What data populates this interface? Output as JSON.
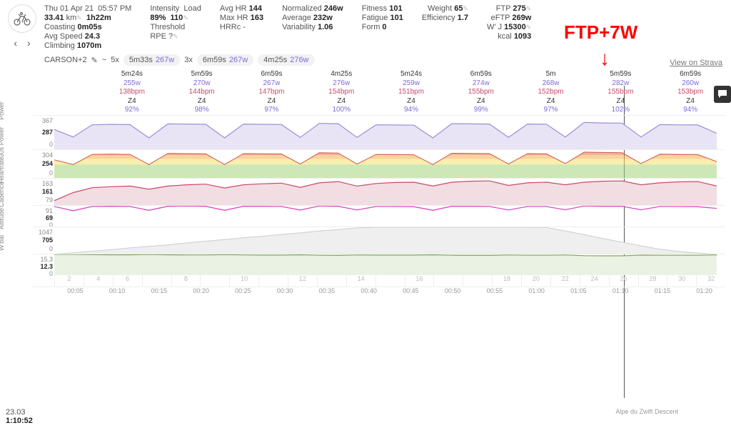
{
  "header": {
    "date": "Thu 01 Apr 21",
    "time": "05:57 PM",
    "distance_val": "33.41",
    "distance_unit": "km",
    "duration": "1h22m",
    "coasting": "0m05s",
    "avg_speed": "24.3",
    "climbing": "1070m",
    "intensity_label": "Intensity",
    "intensity": "89%",
    "load_label": "Load",
    "load": "110",
    "threshold": "Threshold",
    "rpe": "RPE ?",
    "avghr_label": "Avg HR",
    "avghr": "144",
    "maxhr_label": "Max HR",
    "maxhr": "163",
    "hrrc": "HRRc -",
    "norm_label": "Normalized",
    "norm": "246w",
    "avg_label": "Average",
    "avg": "232w",
    "vi_label": "Variability",
    "vi": "1.06",
    "fit_label": "Fitness",
    "fit": "101",
    "fat_label": "Fatigue",
    "fat": "101",
    "form_label": "Form",
    "form": "0",
    "wt_label": "Weight",
    "wt": "65",
    "eff_label": "Efficiency",
    "eff": "1.7",
    "ftp_label": "FTP",
    "ftp": "275",
    "eftp_label": "eFTP",
    "eftp": "269w",
    "wj_label": "W' J",
    "wj": "15300",
    "kcal_label": "kcal",
    "kcal": "1093"
  },
  "workout": {
    "name": "CARSON+2",
    "sep": "~",
    "rep1_n": "5x",
    "rep1_t": "5m33s",
    "rep1_w": "267w",
    "rep2_n": "3x",
    "rep2_t": "6m59s",
    "rep2_w": "267w",
    "rep3_t": "4m25s",
    "rep3_w": "276w"
  },
  "strava": "View on Strava",
  "annotation": "FTP+7W",
  "intervals": [
    {
      "t": "5m24s",
      "w": "255w",
      "b": "138bpm",
      "z": "Z4",
      "p": "92%"
    },
    {
      "t": "5m59s",
      "w": "270w",
      "b": "144bpm",
      "z": "Z4",
      "p": "98%"
    },
    {
      "t": "6m59s",
      "w": "267w",
      "b": "147bpm",
      "z": "Z4",
      "p": "97%"
    },
    {
      "t": "4m25s",
      "w": "276w",
      "b": "154bpm",
      "z": "Z4",
      "p": "100%"
    },
    {
      "t": "5m24s",
      "w": "259w",
      "b": "151bpm",
      "z": "Z4",
      "p": "94%"
    },
    {
      "t": "6m59s",
      "w": "274w",
      "b": "155bpm",
      "z": "Z4",
      "p": "99%"
    },
    {
      "t": "5m",
      "w": "268w",
      "b": "152bpm",
      "z": "Z4",
      "p": "97%"
    },
    {
      "t": "5m59s",
      "w": "282w",
      "b": "155bpm",
      "z": "Z4",
      "p": "102%"
    },
    {
      "t": "6m59s",
      "w": "260w",
      "b": "153bpm",
      "z": "Z4",
      "p": "94%"
    }
  ],
  "charts": {
    "power": {
      "label": "Power",
      "ymax": 367,
      "ycur": 287,
      "ymin": 0,
      "height": 48,
      "color": "#9a8fd9",
      "fill": "#e8e4f5",
      "series": [
        220,
        140,
        270,
        275,
        272,
        130,
        280,
        278,
        276,
        130,
        278,
        275,
        274,
        135,
        285,
        282,
        135,
        270,
        268,
        266,
        130,
        282,
        280,
        278,
        135,
        278,
        276,
        140,
        295,
        290,
        288,
        140,
        272,
        270,
        268,
        180
      ]
    },
    "p30": {
      "label": "30s Power",
      "ymax": 304,
      "ycur": 254,
      "ymin": 0,
      "height": 40,
      "series": [
        200,
        150,
        258,
        260,
        258,
        150,
        268,
        266,
        264,
        150,
        266,
        264,
        262,
        155,
        275,
        272,
        155,
        258,
        256,
        254,
        150,
        270,
        268,
        266,
        155,
        266,
        264,
        160,
        282,
        278,
        276,
        160,
        260,
        258,
        256,
        180
      ]
    },
    "hr": {
      "label": "Heartrate",
      "ymax": 163,
      "ycur": 161,
      "ymin": 79,
      "height": 38,
      "color": "#c94a6a",
      "fill": "#f2dde2",
      "series": [
        95,
        120,
        135,
        138,
        140,
        130,
        140,
        144,
        146,
        134,
        144,
        147,
        149,
        136,
        150,
        154,
        140,
        148,
        151,
        152,
        140,
        152,
        155,
        156,
        142,
        150,
        152,
        144,
        152,
        155,
        156,
        144,
        150,
        153,
        154,
        140
      ]
    },
    "cad": {
      "label": "Cadence",
      "ymax": 91,
      "ycur": 69,
      "ymin": 0,
      "height": 30,
      "color": "#d64fc3",
      "series": [
        88,
        70,
        88,
        89,
        88,
        72,
        89,
        90,
        89,
        72,
        89,
        89,
        88,
        73,
        90,
        89,
        73,
        88,
        88,
        87,
        72,
        89,
        89,
        88,
        73,
        88,
        88,
        74,
        90,
        89,
        89,
        74,
        88,
        88,
        87,
        80
      ]
    },
    "alt": {
      "label": "Altitude",
      "ymax": 1047,
      "ycur": 705,
      "ymin": 0,
      "height": 38,
      "fill": "#efefef",
      "stroke": "#ccc",
      "series": [
        10,
        60,
        120,
        180,
        250,
        310,
        370,
        440,
        510,
        570,
        640,
        700,
        770,
        830,
        900,
        960,
        1020,
        1047,
        1047,
        1047,
        1047,
        1047,
        1047,
        1047,
        1047,
        1047,
        1040,
        900,
        760,
        610,
        470,
        330,
        200,
        110,
        50,
        10
      ]
    },
    "wbal": {
      "label": "W'bal",
      "ymax": 15.3,
      "ycur": 12.3,
      "ymin": 0,
      "height": 30,
      "color": "#7aaa55",
      "fill": "#eaf2e3",
      "series": [
        15.3,
        15.3,
        15.1,
        15.0,
        15.0,
        15.2,
        15.0,
        14.9,
        14.9,
        15.1,
        14.9,
        14.8,
        14.8,
        15.0,
        14.7,
        14.6,
        14.9,
        14.8,
        14.8,
        14.8,
        15.0,
        14.7,
        14.6,
        14.6,
        14.9,
        14.7,
        14.7,
        14.9,
        14.4,
        14.3,
        14.3,
        14.8,
        14.7,
        14.7,
        14.7,
        15.0
      ]
    }
  },
  "xaxis": [
    "00:05",
    "00:10",
    "00:15",
    "00:20",
    "00:25",
    "00:30",
    "00:35",
    "00:40",
    "00:45",
    "00:50",
    "00:55",
    "01:00",
    "01:05",
    "01:10",
    "01:15",
    "01:20"
  ],
  "segments": [
    "2",
    "4",
    "6",
    "",
    "8",
    "",
    "10",
    "",
    "12",
    "",
    "14",
    "",
    "16",
    "",
    "",
    "18",
    "20",
    "22",
    "24",
    "26",
    "28",
    "30",
    "32"
  ],
  "bottom": {
    "dist": "23.03",
    "time": "1:10:52"
  },
  "alpe": "Alpe du Zwift Descent"
}
